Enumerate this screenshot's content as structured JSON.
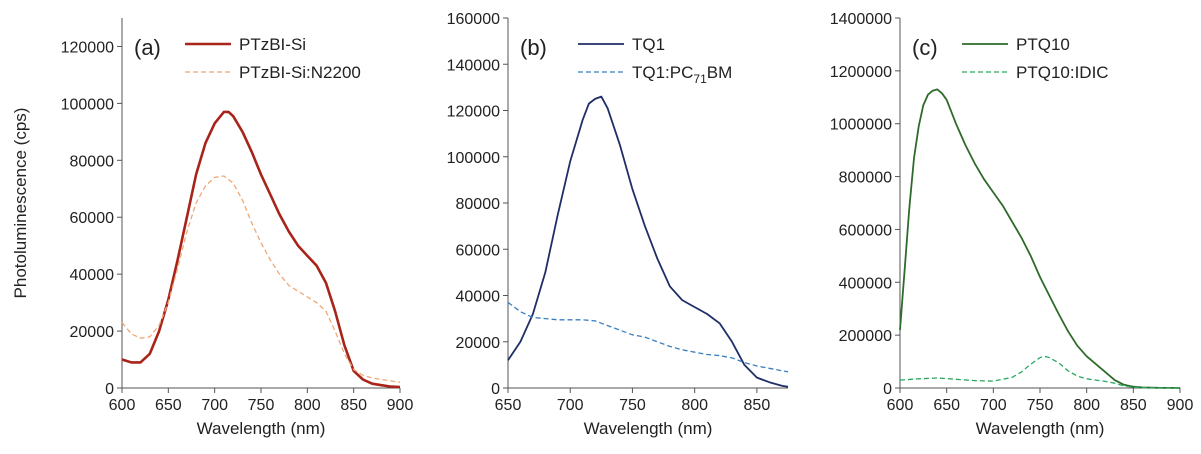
{
  "chart_data": [
    {
      "type": "line",
      "panel_label": "(a)",
      "xlabel": "Wavelength (nm)",
      "ylabel": "Photoluminescence (cps)",
      "xlim": [
        600,
        900
      ],
      "ylim": [
        0,
        130000
      ],
      "x_ticks": [
        600,
        650,
        700,
        750,
        800,
        850,
        900
      ],
      "y_ticks": [
        0,
        20000,
        40000,
        60000,
        80000,
        100000,
        120000
      ],
      "grid": false,
      "legend_position": "top-right",
      "series": [
        {
          "name": "PTzBI-Si",
          "color": "#a8241a",
          "dash": "solid",
          "x": [
            600,
            610,
            620,
            630,
            640,
            650,
            660,
            670,
            680,
            690,
            700,
            710,
            715,
            720,
            730,
            740,
            750,
            760,
            770,
            780,
            790,
            800,
            810,
            820,
            830,
            840,
            850,
            860,
            870,
            880,
            890,
            900
          ],
          "y": [
            10000,
            9000,
            9000,
            12000,
            20000,
            31000,
            45000,
            60000,
            75000,
            86000,
            93000,
            97000,
            97000,
            95500,
            90000,
            83000,
            75000,
            68000,
            61000,
            55000,
            50000,
            46500,
            43000,
            37000,
            27000,
            15000,
            6000,
            3000,
            1500,
            1000,
            500,
            300
          ]
        },
        {
          "name": "PTzBI-Si:N2200",
          "color": "#f0a878",
          "dash": "dashed",
          "x": [
            600,
            610,
            620,
            630,
            640,
            650,
            660,
            670,
            680,
            690,
            700,
            710,
            720,
            730,
            740,
            750,
            760,
            770,
            780,
            790,
            800,
            810,
            820,
            830,
            840,
            850,
            860,
            870,
            880,
            890,
            900
          ],
          "y": [
            23000,
            19000,
            17500,
            18000,
            22000,
            30000,
            42000,
            55000,
            65000,
            71000,
            74000,
            74500,
            72000,
            66000,
            58000,
            51000,
            45000,
            40000,
            36000,
            34000,
            32000,
            30000,
            27000,
            20000,
            12000,
            6500,
            4500,
            3500,
            3000,
            2500,
            2000
          ]
        }
      ]
    },
    {
      "type": "line",
      "panel_label": "(b)",
      "xlabel": "Wavelength (nm)",
      "ylabel": "",
      "xlim": [
        650,
        875
      ],
      "ylim": [
        0,
        160000
      ],
      "x_ticks": [
        650,
        700,
        750,
        800,
        850
      ],
      "y_ticks": [
        0,
        20000,
        40000,
        60000,
        80000,
        100000,
        120000,
        140000,
        160000
      ],
      "grid": false,
      "legend_position": "top-right",
      "series": [
        {
          "name": "TQ1",
          "name_main": "TQ1",
          "color": "#1f2e66",
          "dash": "solid",
          "x": [
            650,
            660,
            670,
            680,
            690,
            700,
            710,
            715,
            720,
            725,
            730,
            740,
            750,
            760,
            770,
            780,
            790,
            800,
            810,
            820,
            830,
            840,
            850,
            860,
            870,
            875
          ],
          "y": [
            12000,
            20000,
            32000,
            50000,
            75000,
            98000,
            116000,
            123000,
            125000,
            126000,
            121000,
            105000,
            86000,
            70000,
            56000,
            44000,
            38000,
            35000,
            32000,
            28000,
            20000,
            10000,
            4500,
            2500,
            1000,
            500
          ]
        },
        {
          "name": "TQ1:PC71BM",
          "name_main": "TQ1:PC",
          "name_sub": "71",
          "name_tail": "BM",
          "color": "#3a7fc0",
          "dash": "dashed",
          "x": [
            650,
            660,
            670,
            680,
            690,
            700,
            710,
            720,
            730,
            740,
            750,
            760,
            770,
            780,
            790,
            800,
            810,
            820,
            830,
            840,
            850,
            860,
            870,
            875
          ],
          "y": [
            37000,
            33000,
            30500,
            30000,
            29500,
            29500,
            29500,
            29000,
            27000,
            25000,
            23000,
            22000,
            20000,
            18000,
            16500,
            15500,
            14500,
            14000,
            13000,
            11000,
            9500,
            8500,
            7500,
            7000
          ]
        }
      ]
    },
    {
      "type": "line",
      "panel_label": "(c)",
      "xlabel": "Wavelength (nm)",
      "ylabel": "",
      "xlim": [
        600,
        900
      ],
      "ylim": [
        0,
        1400000
      ],
      "x_ticks": [
        600,
        650,
        700,
        750,
        800,
        850,
        900
      ],
      "y_ticks": [
        0,
        200000,
        400000,
        600000,
        800000,
        1000000,
        1200000,
        1400000
      ],
      "grid": false,
      "legend_position": "top-right",
      "series": [
        {
          "name": "PTQ10",
          "color": "#2e6b2a",
          "dash": "solid",
          "x": [
            600,
            605,
            610,
            615,
            620,
            625,
            630,
            635,
            640,
            645,
            650,
            660,
            670,
            680,
            690,
            700,
            710,
            720,
            730,
            740,
            750,
            760,
            770,
            780,
            790,
            800,
            810,
            820,
            830,
            840,
            850,
            860,
            870,
            880,
            890,
            900
          ],
          "y": [
            220000,
            450000,
            680000,
            870000,
            990000,
            1070000,
            1110000,
            1125000,
            1130000,
            1115000,
            1090000,
            1000000,
            920000,
            850000,
            790000,
            740000,
            690000,
            630000,
            570000,
            500000,
            420000,
            350000,
            280000,
            215000,
            160000,
            120000,
            90000,
            60000,
            30000,
            12000,
            5000,
            2000,
            1000,
            500,
            200,
            100
          ]
        },
        {
          "name": "PTQ10:IDIC",
          "color": "#2aa860",
          "dash": "dashed",
          "x": [
            600,
            620,
            640,
            660,
            680,
            700,
            720,
            730,
            740,
            750,
            755,
            760,
            770,
            780,
            790,
            800,
            810,
            820,
            830,
            840,
            850,
            860,
            870,
            880,
            890,
            900
          ],
          "y": [
            30000,
            35000,
            38000,
            33000,
            28000,
            26000,
            40000,
            60000,
            90000,
            115000,
            120000,
            115000,
            95000,
            65000,
            45000,
            35000,
            30000,
            25000,
            18000,
            8000,
            3000,
            1500,
            800,
            400,
            200,
            100
          ]
        }
      ]
    }
  ]
}
